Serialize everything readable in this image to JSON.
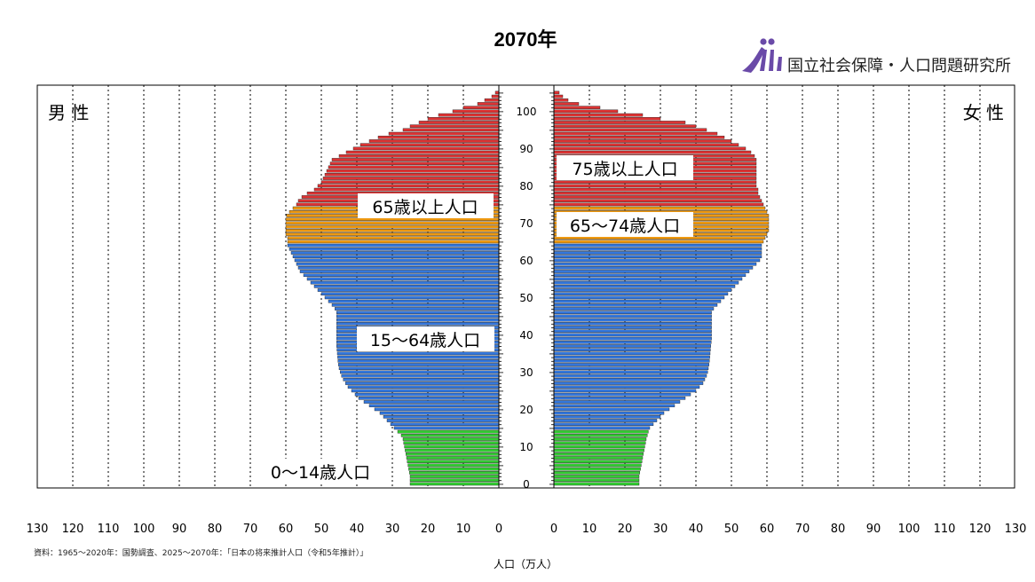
{
  "header": {
    "title": "2070年",
    "org_name": "国立社会保障・人口問題研究所"
  },
  "chart_data": {
    "type": "bar",
    "orientation": "horizontal-pyramid",
    "sides": {
      "left": "男 性",
      "right": "女 性"
    },
    "xlabel": "人口（万人）",
    "xlim": [
      0,
      130
    ],
    "x_ticks": [
      130,
      120,
      110,
      100,
      90,
      80,
      70,
      60,
      50,
      40,
      30,
      20,
      10,
      0
    ],
    "y_ticks": [
      0,
      10,
      20,
      30,
      40,
      50,
      60,
      70,
      80,
      90,
      100
    ],
    "ylim": [
      0,
      105
    ],
    "grid": "vertical dotted",
    "age_groups": [
      {
        "label": "0〜14歳人口",
        "from": 0,
        "to": 14,
        "color": "#33cc33"
      },
      {
        "label": "15〜64歳人口",
        "from": 15,
        "to": 64,
        "color": "#3377dd"
      },
      {
        "label": "65〜74歳人口",
        "from": 65,
        "to": 74,
        "color": "#ee9911"
      },
      {
        "label": "75歳以上人口",
        "from": 75,
        "to": 105,
        "color": "#dd3333"
      }
    ],
    "group_annotations": {
      "male_old": "65歳以上人口",
      "male_working": "15〜64歳人口",
      "male_young": "0〜14歳人口",
      "female_old75": "75歳以上人口",
      "female_old65": "65〜74歳人口"
    },
    "series": [
      {
        "name": "男 性",
        "values": [
          25,
          25,
          25,
          25.2,
          25.4,
          25.6,
          25.8,
          26,
          26.2,
          26.4,
          26.6,
          26.8,
          27,
          27.5,
          28.5,
          29.5,
          30.5,
          31.5,
          32.5,
          33.5,
          35,
          36.5,
          38,
          39.5,
          40.5,
          41.5,
          42.5,
          43.2,
          43.8,
          44.3,
          44.7,
          45,
          45.2,
          45.3,
          45.4,
          45.5,
          45.6,
          45.7,
          45.7,
          45.7,
          45.7,
          45.7,
          45.7,
          45.7,
          45.7,
          45.7,
          45.7,
          46.2,
          47,
          48,
          49,
          50,
          51,
          52,
          53,
          54,
          55,
          56,
          56.5,
          57,
          57.5,
          58,
          58.5,
          59,
          59.5,
          59.5,
          59.5,
          60,
          60,
          60,
          60,
          60,
          59.8,
          59,
          58,
          57,
          56.5,
          55.5,
          54,
          52,
          51,
          50,
          49.5,
          49,
          48.5,
          48,
          47.5,
          47,
          45,
          43,
          41,
          39,
          36.5,
          34,
          31,
          27,
          25,
          22.5,
          20,
          17,
          13,
          10,
          6,
          4,
          2,
          1
        ]
      },
      {
        "name": "女 性",
        "values": [
          24,
          24,
          24,
          24.2,
          24.4,
          24.6,
          24.8,
          25,
          25.2,
          25.4,
          25.6,
          25.8,
          26,
          26.3,
          26.6,
          27,
          28,
          29,
          30,
          31,
          32.5,
          34,
          35.5,
          37,
          38.5,
          40,
          41,
          42,
          42.5,
          43,
          43.3,
          43.5,
          43.7,
          43.8,
          43.9,
          44,
          44.1,
          44.2,
          44.3,
          44.4,
          44.4,
          44.4,
          44.4,
          44.4,
          44.4,
          44.4,
          44.4,
          45,
          46,
          47,
          48,
          49,
          50,
          51,
          52,
          53,
          54,
          55,
          56,
          57,
          58,
          58.5,
          58.5,
          58.5,
          58.5,
          59,
          59.5,
          60,
          60.5,
          60.5,
          60.5,
          60.5,
          60.5,
          60,
          59.5,
          59,
          58.5,
          58,
          57.5,
          57.5,
          57,
          57,
          57,
          57,
          57,
          57,
          57,
          57,
          56.5,
          55.5,
          54,
          52,
          50,
          48,
          46,
          43,
          40,
          37,
          30,
          25,
          18,
          13,
          7,
          4,
          2.5,
          1.5
        ]
      }
    ],
    "source_note": "資料：1965〜2020年：国勢調査、2025〜2070年：「日本の将来推計人口（令和5年推計）」"
  }
}
